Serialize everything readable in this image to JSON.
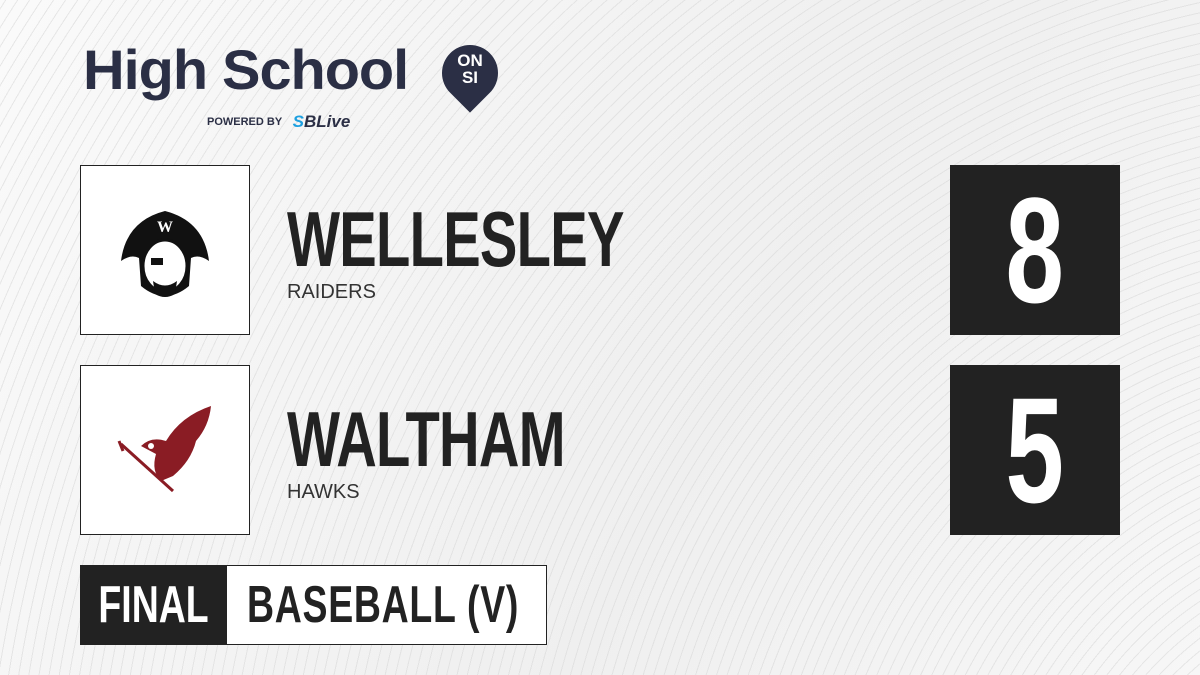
{
  "brand": {
    "title": "High School",
    "badge_top": "ON",
    "badge_bottom": "SI",
    "powered_by": "POWERED BY",
    "partner_s": "S",
    "partner_rest": "BLive",
    "colors": {
      "navy": "#2b2f45",
      "partner_blue": "#1ea0e0"
    }
  },
  "teams": [
    {
      "name": "WELLESLEY",
      "nickname": "RAIDERS",
      "score": "8",
      "logo_icon": "pirate-icon",
      "logo_letter": "W"
    },
    {
      "name": "WALTHAM",
      "nickname": "HAWKS",
      "score": "5",
      "logo_icon": "hawk-icon",
      "logo_color": "#8a1c24"
    }
  ],
  "status": {
    "label": "FINAL",
    "sport": "BASEBALL (V)"
  }
}
